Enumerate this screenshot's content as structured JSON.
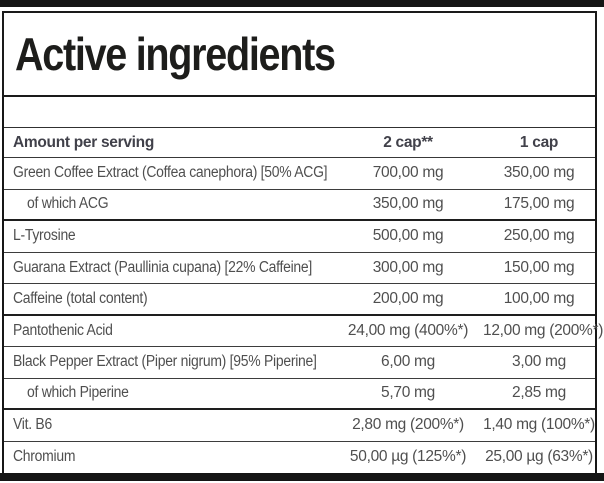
{
  "title": "Active ingredients",
  "table": {
    "headers": {
      "col1": "Amount per serving",
      "col2": "2 cap**",
      "col3": "1 cap"
    },
    "rows": [
      {
        "name": "Green Coffee Extract (Coffea canephora) [50% ACG]",
        "two_cap": "700,00 mg",
        "one_cap": "350,00 mg",
        "indent": false,
        "group_end": false
      },
      {
        "name": "of which ACG",
        "two_cap": "350,00 mg",
        "one_cap": "175,00 mg",
        "indent": true,
        "group_end": true
      },
      {
        "name": "L-Tyrosine",
        "two_cap": "500,00 mg",
        "one_cap": "250,00 mg",
        "indent": false,
        "group_end": false
      },
      {
        "name": "Guarana Extract (Paullinia cupana) [22% Caffeine]",
        "two_cap": "300,00 mg",
        "one_cap": "150,00 mg",
        "indent": false,
        "group_end": false
      },
      {
        "name": "Caffeine (total content)",
        "two_cap": "200,00 mg",
        "one_cap": "100,00 mg",
        "indent": false,
        "group_end": true
      },
      {
        "name": "Pantothenic Acid",
        "two_cap": "24,00 mg (400%*)",
        "one_cap": "12,00 mg (200%*)",
        "indent": false,
        "group_end": false
      },
      {
        "name": "Black Pepper Extract (Piper nigrum) [95% Piperine]",
        "two_cap": "6,00 mg",
        "one_cap": "3,00 mg",
        "indent": false,
        "group_end": false
      },
      {
        "name": "of which Piperine",
        "two_cap": "5,70 mg",
        "one_cap": "2,85 mg",
        "indent": true,
        "group_end": true
      },
      {
        "name": "Vit. B6",
        "two_cap": "2,80 mg (200%*)",
        "one_cap": "1,40 mg (100%*)",
        "indent": false,
        "group_end": false
      },
      {
        "name": "Chromium",
        "two_cap": "50,00 µg (125%*)",
        "one_cap": "25,00 µg (63%*)",
        "indent": false,
        "group_end": false
      }
    ]
  },
  "colors": {
    "bar": "#151515",
    "title_text": "#1d1d1b",
    "header_text": "#41414a",
    "row_text": "#4f4f4f",
    "border": "#3d3d3d",
    "group_border": "#1e1e1e",
    "background": "#ffffff"
  }
}
